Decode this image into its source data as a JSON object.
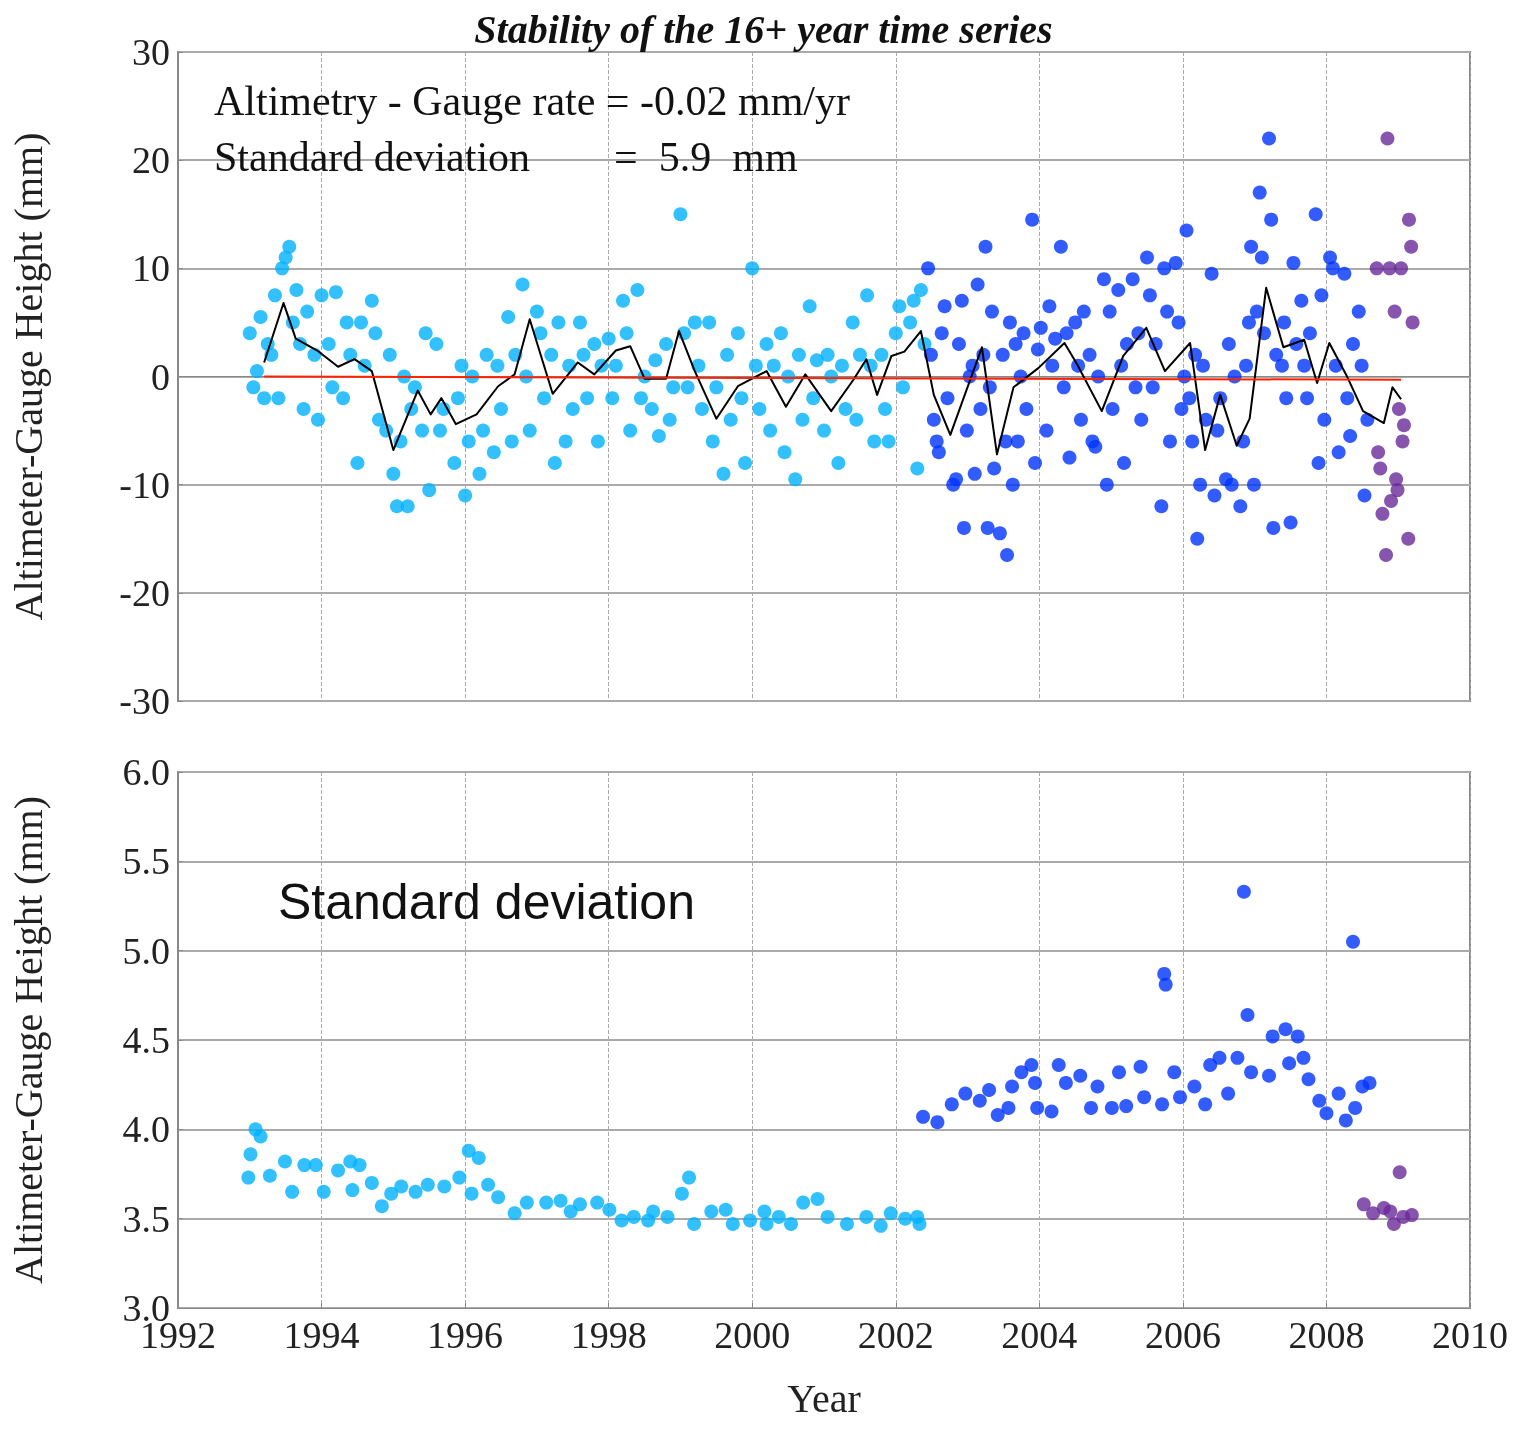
{
  "chart_data": [
    {
      "type": "scatter",
      "title": "Stability of the 16+ year time series",
      "ylabel": "Altimeter-Gauge Height (mm)",
      "annotations": [
        "Altimetry - Gauge rate = -0.02 mm/yr",
        "Standard deviation        =  5.9  mm"
      ],
      "xlim": [
        1992,
        2010
      ],
      "xticks": [
        1992,
        1994,
        1996,
        1998,
        2000,
        2002,
        2004,
        2006,
        2008,
        2010
      ],
      "ylim": [
        -30,
        30
      ],
      "yticks": [
        -30,
        -20,
        -10,
        0,
        10,
        20,
        30
      ],
      "tick_labels": "y",
      "grid": true,
      "marker": "circle",
      "series": [
        {
          "type": "scatter",
          "color": "#00b0ff",
          "x": [
            1993.0,
            1993.05,
            1993.1,
            1993.15,
            1993.2,
            1993.25,
            1993.3,
            1993.35,
            1993.4,
            1993.45,
            1993.5,
            1993.55,
            1993.6,
            1993.65,
            1993.7,
            1993.75,
            1993.8,
            1993.9,
            1993.95,
            1994.0,
            1994.1,
            1994.15,
            1994.2,
            1994.3,
            1994.35,
            1994.4,
            1994.5,
            1994.55,
            1994.6,
            1994.7,
            1994.75,
            1994.8,
            1994.9,
            1994.95,
            1995.0,
            1995.05,
            1995.1,
            1995.15,
            1995.2,
            1995.25,
            1995.3,
            1995.4,
            1995.45,
            1995.5,
            1995.6,
            1995.65,
            1995.7,
            1995.85,
            1995.9,
            1995.95,
            1996.0,
            1996.05,
            1996.1,
            1996.2,
            1996.25,
            1996.3,
            1996.4,
            1996.45,
            1996.5,
            1996.6,
            1996.65,
            1996.7,
            1996.8,
            1996.85,
            1996.9,
            1997.0,
            1997.05,
            1997.1,
            1997.2,
            1997.25,
            1997.3,
            1997.4,
            1997.45,
            1997.5,
            1997.6,
            1997.65,
            1997.7,
            1997.8,
            1997.85,
            1997.9,
            1998.0,
            1998.05,
            1998.1,
            1998.2,
            1998.25,
            1998.3,
            1998.4,
            1998.45,
            1998.5,
            1998.6,
            1998.65,
            1998.7,
            1998.8,
            1998.85,
            1998.9,
            1999.0,
            1999.05,
            1999.1,
            1999.2,
            1999.25,
            1999.3,
            1999.4,
            1999.45,
            1999.5,
            1999.6,
            1999.65,
            1999.7,
            1999.8,
            1999.85,
            1999.9,
            2000.0,
            2000.05,
            2000.1,
            2000.2,
            2000.25,
            2000.3,
            2000.4,
            2000.45,
            2000.5,
            2000.6,
            2000.65,
            2000.7,
            2000.8,
            2000.85,
            2000.9,
            2001.0,
            2001.05,
            2001.1,
            2001.2,
            2001.25,
            2001.3,
            2001.4,
            2001.45,
            2001.5,
            2001.6,
            2001.65,
            2001.7,
            2001.8,
            2001.85,
            2001.9,
            2002.0,
            2002.05,
            2002.1,
            2002.2,
            2002.25,
            2002.3,
            2002.35,
            2002.4
          ],
          "values": [
            4,
            -1,
            0.5,
            5.5,
            -2,
            3,
            2,
            7.5,
            -2,
            10,
            11,
            12,
            5,
            8,
            3,
            -3,
            6,
            2,
            -4,
            7.5,
            3,
            -1,
            7.8,
            -2,
            5,
            2,
            -8,
            5,
            1,
            7,
            4,
            -4,
            -5,
            2,
            -9,
            -12,
            -6,
            0,
            -12,
            -3,
            -1,
            -5,
            4,
            -10.5,
            3,
            -5,
            -3,
            -8,
            -2,
            1,
            -11,
            -6,
            0,
            -9,
            -5,
            2,
            -7,
            1,
            -3,
            5.5,
            -6,
            2,
            8.5,
            0,
            -5,
            6,
            4,
            -2,
            2,
            -8,
            5,
            -6,
            1,
            -3,
            5,
            2,
            -2,
            3,
            -6,
            1,
            3.5,
            -2,
            1,
            7,
            4,
            -5,
            8,
            -2,
            0,
            -3,
            1.5,
            -5.5,
            3,
            -4,
            -1,
            15,
            4,
            -1,
            5,
            1,
            -3,
            5,
            -6,
            -1,
            -9,
            2,
            -4,
            4,
            -2,
            -8,
            10,
            1,
            -3,
            3,
            -5,
            1,
            4,
            -7,
            0,
            -9.5,
            2,
            -4,
            6.5,
            -2,
            1.5,
            -5,
            2,
            0,
            -8,
            1,
            -3,
            5,
            -4,
            2,
            7.5,
            1,
            -6,
            2,
            -3,
            -6,
            4,
            6.5,
            -1,
            5,
            7,
            -8.5,
            8,
            3
          ]
        },
        {
          "type": "scatter",
          "color": "#0033ff",
          "x": [
            2002.45,
            2002.49,
            2002.53,
            2002.57,
            2002.6,
            2002.64,
            2002.68,
            2002.72,
            2002.8,
            2002.84,
            2002.88,
            2002.92,
            2002.95,
            2002.99,
            2003.03,
            2003.07,
            2003.1,
            2003.14,
            2003.18,
            2003.22,
            2003.25,
            2003.28,
            2003.31,
            2003.34,
            2003.37,
            2003.45,
            2003.49,
            2003.53,
            2003.55,
            2003.59,
            2003.63,
            2003.67,
            2003.7,
            2003.74,
            2003.78,
            2003.82,
            2003.9,
            2003.94,
            2003.98,
            2004.02,
            2004.1,
            2004.14,
            2004.18,
            2004.22,
            2004.3,
            2004.34,
            2004.38,
            2004.42,
            2004.5,
            2004.54,
            2004.58,
            2004.62,
            2004.7,
            2004.74,
            2004.78,
            2004.82,
            2004.9,
            2004.94,
            2004.98,
            2005.02,
            2005.1,
            2005.14,
            2005.18,
            2005.22,
            2005.3,
            2005.34,
            2005.38,
            2005.42,
            2005.5,
            2005.54,
            2005.58,
            2005.62,
            2005.7,
            2005.74,
            2005.78,
            2005.82,
            2005.9,
            2005.94,
            2005.98,
            2006.02,
            2006.05,
            2006.09,
            2006.13,
            2006.17,
            2006.2,
            2006.24,
            2006.28,
            2006.32,
            2006.4,
            2006.44,
            2006.48,
            2006.52,
            2006.6,
            2006.64,
            2006.68,
            2006.72,
            2006.8,
            2006.84,
            2006.88,
            2006.92,
            2006.95,
            2006.99,
            2007.03,
            2007.07,
            2007.1,
            2007.13,
            2007.2,
            2007.23,
            2007.26,
            2007.3,
            2007.38,
            2007.41,
            2007.44,
            2007.5,
            2007.54,
            2007.58,
            2007.65,
            2007.69,
            2007.73,
            2007.77,
            2007.85,
            2007.89,
            2007.93,
            2007.97,
            2008.05,
            2008.09,
            2008.13,
            2008.17,
            2008.25,
            2008.29,
            2008.33,
            2008.37,
            2008.45,
            2008.49,
            2008.53,
            2008.57
          ],
          "values": [
            10,
            2,
            -4,
            -6,
            -7,
            4,
            6.5,
            -2,
            -10,
            -9.5,
            3,
            7,
            -14,
            -5,
            0,
            1,
            -9,
            8.5,
            -3,
            2,
            12,
            -14,
            -1,
            6,
            -8.5,
            -14.5,
            2,
            -6,
            -16.5,
            5,
            -10,
            3,
            -6,
            0,
            4,
            -3,
            14.5,
            -8,
            2.5,
            4.5,
            -5,
            6.5,
            1,
            3.5,
            12,
            -1,
            4,
            -7.5,
            5,
            1,
            -4,
            6,
            2,
            -6,
            -6.5,
            0,
            9,
            -10,
            6,
            -3,
            8,
            1,
            -8,
            3,
            9,
            -1,
            4,
            -4,
            11,
            7.5,
            -1,
            3,
            -12,
            10,
            6,
            -6,
            10.5,
            5,
            -3,
            0,
            13.5,
            -2,
            -6,
            2,
            -15,
            -10,
            1,
            -4,
            9.5,
            -11,
            -5,
            -2,
            -9.5,
            3,
            -10,
            0,
            -12,
            -6,
            1,
            5,
            12,
            -10,
            6,
            17,
            11,
            4,
            22,
            14.5,
            -14,
            2,
            1,
            5,
            -2,
            -13.5,
            10.5,
            3,
            7,
            1,
            -2,
            4,
            15,
            -8,
            7.5,
            -4,
            11,
            10,
            1,
            -7,
            9.5,
            -2,
            -5.5,
            3,
            6,
            1,
            -11,
            -4
          ]
        },
        {
          "type": "scatter",
          "color": "#6a2a9a",
          "x": [
            2008.72,
            2008.75,
            2008.78,
            2008.7,
            2008.85,
            2008.83,
            2008.88,
            2008.9,
            2008.95,
            2008.97,
            2008.99,
            2009.01,
            2009.04,
            2009.06,
            2009.08,
            2009.15,
            2009.18,
            2009.2,
            2009.14
          ],
          "values": [
            -7,
            -8.5,
            -12.7,
            10,
            22,
            -16.5,
            10,
            -11.5,
            6,
            -9.5,
            -10.5,
            -3,
            10,
            -6,
            -4.5,
            14.5,
            12,
            5,
            -15
          ]
        },
        {
          "type": "line",
          "color": "#000000",
          "marker": "none",
          "x": [
            1993.2,
            1993.47,
            1993.64,
            1993.94,
            1994.23,
            1994.46,
            1994.7,
            1995.0,
            1995.34,
            1995.52,
            1995.67,
            1995.87,
            1996.16,
            1996.46,
            1996.69,
            1996.9,
            1997.22,
            1997.57,
            1997.8,
            1998.1,
            1998.3,
            1998.5,
            1998.8,
            1998.98,
            1999.2,
            1999.5,
            1999.8,
            2000.2,
            2000.47,
            2000.74,
            2001.1,
            2001.41,
            2001.59,
            2001.74,
            2001.94,
            2002.12,
            2002.35,
            2002.53,
            2002.76,
            2003.2,
            2003.41,
            2003.64,
            2003.99,
            2004.35,
            2004.52,
            2004.87,
            2005.17,
            2005.49,
            2005.75,
            2006.1,
            2006.31,
            2006.52,
            2006.75,
            2006.93,
            2007.16,
            2007.4,
            2007.69,
            2007.87,
            2008.04,
            2008.28,
            2008.51,
            2008.8,
            2008.92,
            2009.04
          ],
          "values": [
            1.3,
            6.8,
            3.5,
            2.4,
            0.9,
            1.6,
            0.5,
            -6.8,
            -1.3,
            -3.5,
            -2,
            -4.4,
            -3.5,
            -0.9,
            0.2,
            5.3,
            -1.6,
            1.3,
            0.2,
            2.4,
            2.8,
            -0.2,
            -0.2,
            4.2,
            0.5,
            -3.9,
            -0.9,
            0.5,
            -2.8,
            0.2,
            -3.2,
            -0.3,
            1.6,
            -1.7,
            1.9,
            2.3,
            4.2,
            -1.7,
            -5.4,
            2.7,
            -7.2,
            -1,
            0.8,
            3.1,
            1.2,
            -3.2,
            1.9,
            4.5,
            0.5,
            3.1,
            -6.8,
            -1.7,
            -6.4,
            -3.9,
            8.2,
            2.7,
            3.4,
            -0.6,
            3.1,
            0.1,
            -3.2,
            -4.3,
            -1,
            -2.1
          ]
        },
        {
          "type": "line",
          "color": "#ff2200",
          "marker": "none",
          "x": [
            1993.2,
            2009.04
          ],
          "values": [
            0,
            -0.3
          ]
        }
      ]
    },
    {
      "type": "scatter",
      "xlabel": "Year",
      "ylabel": "Altimeter-Gauge Height (mm)",
      "annotations": [
        "Standard deviation"
      ],
      "xlim": [
        1992,
        2010
      ],
      "xticks": [
        1992,
        1994,
        1996,
        1998,
        2000,
        2002,
        2004,
        2006,
        2008,
        2010
      ],
      "ylim": [
        3,
        6
      ],
      "yticks": [
        {
          "value": 3,
          "label": "3.0"
        },
        3.5,
        {
          "value": 4,
          "label": "4.0"
        },
        4.5,
        {
          "value": 5,
          "label": "5.0"
        },
        5.5,
        {
          "value": 6,
          "label": "6.0"
        }
      ],
      "grid": true,
      "marker": "circle",
      "series": [
        {
          "type": "scatter",
          "color": "#00b0ff",
          "x": [
            1992.98,
            1993.08,
            1993.01,
            1993.15,
            1993.28,
            1993.49,
            1993.59,
            1993.76,
            1993.92,
            1994.03,
            1994.23,
            1994.4,
            1994.53,
            1994.43,
            1994.7,
            1994.84,
            1994.97,
            1995.11,
            1995.31,
            1995.48,
            1995.71,
            1995.92,
            1996.05,
            1996.19,
            1996.09,
            1996.32,
            1996.46,
            1996.69,
            1996.86,
            1997.13,
            1997.33,
            1997.47,
            1997.6,
            1997.84,
            1998.01,
            1998.18,
            1998.35,
            1998.55,
            1998.62,
            1998.82,
            1999.02,
            1999.12,
            1999.19,
            1999.43,
            1999.63,
            1999.73,
            1999.97,
            2000.17,
            2000.2,
            2000.37,
            2000.54,
            2000.71,
            2000.91,
            2001.05,
            2001.32,
            2001.59,
            2001.79,
            2001.93,
            2002.13,
            2002.3,
            2002.33
          ],
          "values": [
            3.73,
            4.0,
            3.86,
            3.96,
            3.74,
            3.82,
            3.65,
            3.8,
            3.8,
            3.65,
            3.77,
            3.82,
            3.8,
            3.66,
            3.7,
            3.57,
            3.64,
            3.68,
            3.65,
            3.69,
            3.68,
            3.73,
            3.88,
            3.84,
            3.64,
            3.69,
            3.62,
            3.53,
            3.59,
            3.59,
            3.6,
            3.54,
            3.58,
            3.59,
            3.55,
            3.49,
            3.51,
            3.49,
            3.54,
            3.51,
            3.64,
            3.73,
            3.47,
            3.54,
            3.55,
            3.47,
            3.49,
            3.54,
            3.47,
            3.51,
            3.47,
            3.59,
            3.61,
            3.51,
            3.47,
            3.51,
            3.46,
            3.53,
            3.5,
            3.51,
            3.47
          ]
        },
        {
          "type": "scatter",
          "color": "#0033ff",
          "x": [
            2002.38,
            2002.58,
            2002.78,
            2002.97,
            2003.17,
            2003.3,
            2003.42,
            2003.57,
            2003.62,
            2003.75,
            2003.89,
            2003.94,
            2003.97,
            2004.17,
            2004.27,
            2004.37,
            2004.57,
            2004.72,
            2004.81,
            2005.01,
            2005.11,
            2005.21,
            2005.41,
            2005.46,
            2005.71,
            2005.74,
            2005.76,
            2005.88,
            2005.96,
            2006.16,
            2006.31,
            2006.38,
            2006.51,
            2006.63,
            2006.76,
            2006.85,
            2006.9,
            2006.95,
            2007.2,
            2007.25,
            2007.43,
            2007.6,
            2007.48,
            2007.68,
            2007.75,
            2007.9,
            2008.0,
            2008.17,
            2008.27,
            2008.37,
            2008.4,
            2008.5,
            2008.6
          ],
          "values": [
            4.07,
            4.04,
            4.14,
            4.2,
            4.16,
            4.22,
            4.08,
            4.12,
            4.24,
            4.32,
            4.36,
            4.26,
            4.12,
            4.1,
            4.36,
            4.26,
            4.3,
            4.12,
            4.24,
            4.12,
            4.32,
            4.13,
            4.35,
            4.18,
            4.14,
            4.87,
            4.81,
            4.32,
            4.18,
            4.24,
            4.14,
            4.36,
            4.4,
            4.2,
            4.4,
            5.33,
            4.64,
            4.32,
            4.3,
            4.52,
            4.56,
            4.52,
            4.37,
            4.4,
            4.28,
            4.16,
            4.09,
            4.2,
            4.05,
            5.05,
            4.12,
            4.24,
            4.26
          ]
        },
        {
          "type": "scatter",
          "color": "#6a2a9a",
          "x": [
            2008.52,
            2008.65,
            2008.8,
            2009.02,
            2008.94,
            2009.07,
            2009.19,
            2008.89
          ],
          "values": [
            3.58,
            3.53,
            3.56,
            3.76,
            3.47,
            3.51,
            3.52,
            3.54
          ]
        }
      ]
    }
  ]
}
